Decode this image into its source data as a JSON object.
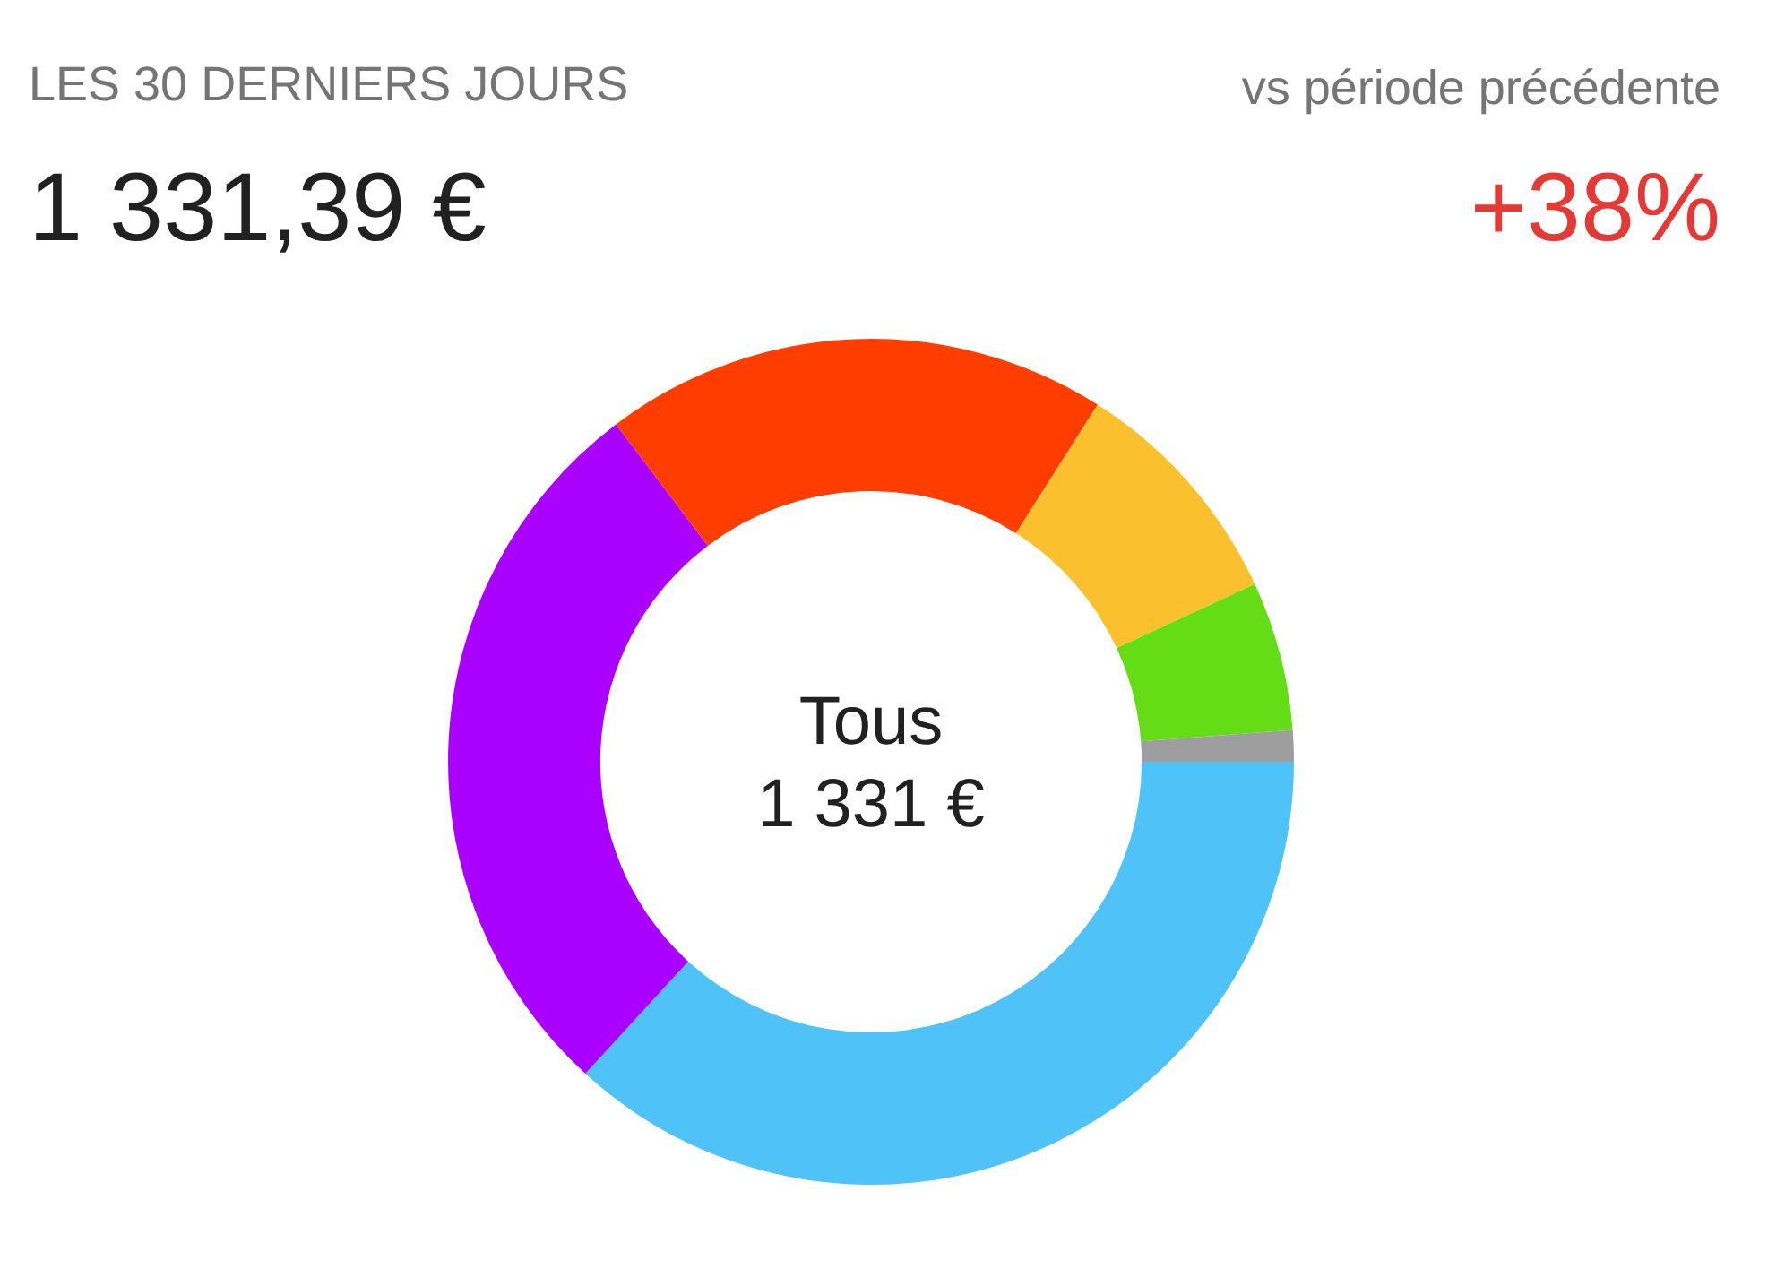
{
  "chart_data": {
    "type": "donut",
    "title": "LES 30 DERNIERS JOURS",
    "subtitle": "1 331,39 €",
    "annotations": [
      "vs période précédente",
      "+38%",
      "Tous",
      "1 331 €"
    ],
    "categories": [
      null,
      null,
      null,
      null,
      null,
      null
    ],
    "values": [
      36.8,
      27.9,
      19.3,
      9.1,
      5.7,
      1.2
    ],
    "colors": [
      "#4fc3f7",
      "#aa00ff",
      "#ff3d00",
      "#fbc02d",
      "#64dd17",
      "#9e9e9e"
    ]
  }
}
